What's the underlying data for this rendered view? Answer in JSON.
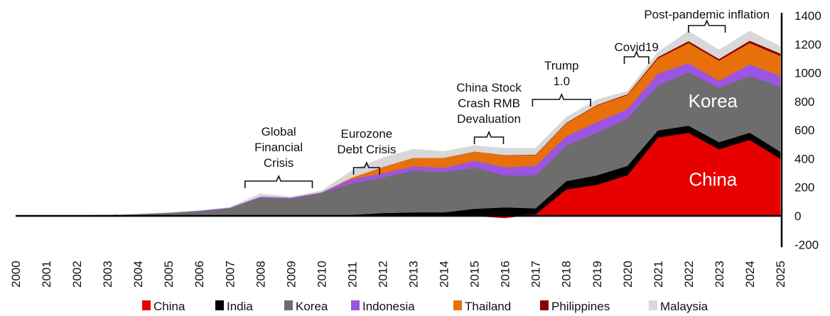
{
  "chart_data": {
    "type": "area",
    "stacked": true,
    "title": "",
    "xlabel": "",
    "ylabel": "",
    "x": [
      2000,
      2001,
      2002,
      2003,
      2004,
      2005,
      2006,
      2007,
      2008,
      2009,
      2010,
      2011,
      2012,
      2013,
      2014,
      2015,
      2016,
      2017,
      2018,
      2019,
      2020,
      2021,
      2022,
      2023,
      2024,
      2025
    ],
    "x_tick_labels": [
      "2000",
      "2001",
      "2002",
      "2003",
      "2004",
      "2005",
      "2006",
      "2007",
      "2008",
      "2009",
      "2010",
      "2011",
      "2012",
      "2013",
      "2014",
      "2015",
      "2016",
      "2017",
      "2018",
      "2019",
      "2020",
      "2021",
      "2022",
      "2023",
      "2024",
      "2025"
    ],
    "ylim": [
      -200,
      1400
    ],
    "y_ticks": [
      -200,
      0,
      200,
      400,
      600,
      800,
      1000,
      1200,
      1400
    ],
    "y_axis_position": "right",
    "grid": false,
    "legend_position": "bottom",
    "series": [
      {
        "name": "China",
        "color": "#e60000",
        "values": [
          0,
          0,
          0,
          0,
          0,
          0,
          0,
          0,
          0,
          0,
          0,
          0,
          0,
          0,
          0,
          0,
          -15,
          12,
          185,
          218,
          284,
          549,
          582,
          466,
          532,
          400
        ]
      },
      {
        "name": "India",
        "color": "#000000",
        "values": [
          0,
          0,
          0,
          0,
          0,
          0,
          1,
          2,
          2,
          2,
          3,
          8,
          20,
          25,
          25,
          50,
          60,
          41,
          58,
          66,
          66,
          49,
          49,
          50,
          50,
          50
        ]
      },
      {
        "name": "Korea",
        "color": "#6d6d6d",
        "values": [
          0,
          1,
          2,
          5,
          12,
          20,
          32,
          50,
          125,
          118,
          156,
          220,
          248,
          292,
          282,
          287,
          223,
          231,
          248,
          298,
          331,
          314,
          372,
          380,
          397,
          454
        ]
      },
      {
        "name": "Indonesia",
        "color": "#9b55e0",
        "values": [
          0,
          0,
          0,
          0,
          1,
          2,
          3,
          5,
          8,
          8,
          6,
          30,
          30,
          30,
          30,
          50,
          57,
          66,
          66,
          74,
          66,
          83,
          66,
          49,
          82,
          75
        ]
      },
      {
        "name": "Thailand",
        "color": "#e8700a",
        "values": [
          0,
          0,
          0,
          0,
          0,
          0,
          0,
          0,
          0,
          0,
          0,
          10,
          44,
          59,
          69,
          64,
          83,
          75,
          91,
          116,
          99,
          107,
          141,
          141,
          149,
          140
        ]
      },
      {
        "name": "Philippines",
        "color": "#8b0000",
        "values": [
          0,
          0,
          0,
          0,
          0,
          0,
          0,
          0,
          0,
          0,
          0,
          0,
          0,
          0,
          0,
          0,
          2,
          3,
          3,
          4,
          5,
          9,
          13,
          12,
          16,
          17
        ]
      },
      {
        "name": "Malaysia",
        "color": "#d8d8d8",
        "values": [
          0,
          0,
          0,
          0,
          1,
          1,
          2,
          3,
          20,
          5,
          10,
          50,
          64,
          60,
          45,
          40,
          48,
          46,
          38,
          37,
          20,
          33,
          70,
          62,
          67,
          49
        ]
      }
    ],
    "inline_labels": [
      {
        "text": "Korea",
        "x": 2022.8,
        "y": 760
      },
      {
        "text": "China",
        "x": 2022.8,
        "y": 210
      }
    ],
    "annotations": [
      {
        "lines": [
          "Global",
          "Financial",
          "Crisis"
        ],
        "span": [
          2007.5,
          2009.7
        ]
      },
      {
        "lines": [
          "Eurozone",
          "Debt Crisis"
        ],
        "span": [
          2011.05,
          2011.9
        ]
      },
      {
        "lines": [
          "China Stock",
          "Crash RMB",
          "Devaluation"
        ],
        "span": [
          2015.0,
          2015.95
        ]
      },
      {
        "lines": [
          "Trump",
          "1.0"
        ],
        "span": [
          2016.9,
          2018.8
        ]
      },
      {
        "lines": [
          "Covid19"
        ],
        "span": [
          2019.9,
          2020.7
        ]
      },
      {
        "lines": [
          "Post-pandemic inflation"
        ],
        "span": [
          2022.0,
          2023.2
        ]
      }
    ]
  }
}
